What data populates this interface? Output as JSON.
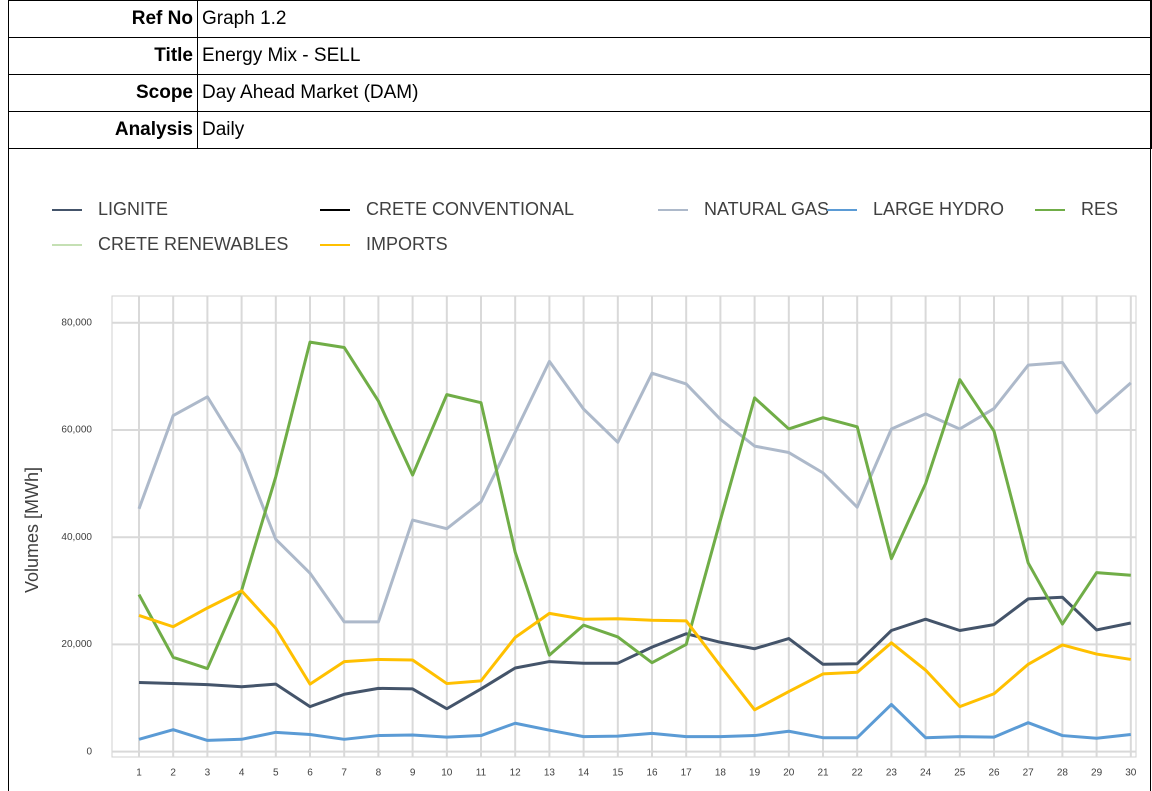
{
  "table": {
    "rows": [
      [
        "Ref No",
        "Graph 1.2"
      ],
      [
        "Title",
        "Energy Mix - SELL"
      ],
      [
        "Scope",
        "Day Ahead Market (DAM)"
      ],
      [
        "Analysis",
        "Daily"
      ]
    ]
  },
  "chart_data": {
    "type": "line",
    "y_label": "Volumes [MWh]",
    "categories": [
      "1",
      "2",
      "3",
      "4",
      "5",
      "6",
      "7",
      "8",
      "9",
      "10",
      "11",
      "12",
      "13",
      "14",
      "15",
      "16",
      "17",
      "18",
      "19",
      "20",
      "21",
      "22",
      "23",
      "24",
      "25",
      "26",
      "27",
      "28",
      "29",
      "30"
    ],
    "ylim": [
      -1000,
      85000
    ],
    "yticks": [
      0,
      {
        "value": 20000,
        "label": "20,000"
      },
      {
        "value": 40000,
        "label": "40,000"
      },
      {
        "value": 60000,
        "label": "60,000"
      },
      {
        "value": 80000,
        "label": "80,000"
      }
    ],
    "grid": true,
    "series": [
      {
        "name": "LIGNITE",
        "color": "#44546a",
        "values": [
          12900,
          12700,
          12500,
          12100,
          12600,
          8400,
          10700,
          11800,
          11700,
          8000,
          11700,
          15600,
          16800,
          16500,
          16500,
          19500,
          22000,
          20400,
          19200,
          21100,
          16300,
          16400,
          22600,
          24700,
          22600,
          23700,
          28500,
          28800,
          22700,
          24000
        ]
      },
      {
        "name": "CRETE CONVENTIONAL",
        "color": "#000000",
        "values": [
          null,
          null,
          null,
          null,
          null,
          null,
          null,
          null,
          null,
          null,
          null,
          null,
          null,
          null,
          null,
          null,
          null,
          null,
          null,
          null,
          null,
          null,
          null,
          null,
          null,
          null,
          null,
          null,
          null,
          null
        ]
      },
      {
        "name": "NATURAL GAS",
        "color": "#adb9ca",
        "values": [
          45300,
          62700,
          66200,
          55800,
          39600,
          33300,
          24200,
          24200,
          43200,
          41600,
          46600,
          59600,
          72800,
          63900,
          57700,
          70600,
          68600,
          62000,
          57000,
          55800,
          52000,
          45600,
          60200,
          63000,
          60200,
          64000,
          72100,
          72600,
          63200,
          68800
        ]
      },
      {
        "name": "LARGE HYDRO",
        "color": "#5b9bd5",
        "values": [
          2300,
          4100,
          2100,
          2300,
          3600,
          3200,
          2300,
          3000,
          3100,
          2700,
          3000,
          5300,
          4000,
          2800,
          2900,
          3400,
          2800,
          2800,
          3000,
          3800,
          2600,
          2600,
          8800,
          2600,
          2800,
          2700,
          5400,
          3000,
          2500,
          3200
        ]
      },
      {
        "name": "RES",
        "color": "#70ad47",
        "values": [
          29300,
          17600,
          15500,
          30100,
          51300,
          76400,
          75400,
          65400,
          51600,
          66600,
          65100,
          37200,
          18000,
          23600,
          21400,
          16600,
          20000,
          43200,
          66000,
          60200,
          62300,
          60600,
          36000,
          50000,
          69400,
          59800,
          35200,
          23800,
          33400,
          32900
        ]
      },
      {
        "name": "CRETE RENEWABLES",
        "color": "#c5e0b4",
        "values": [
          null,
          null,
          null,
          null,
          null,
          null,
          null,
          null,
          null,
          null,
          null,
          null,
          null,
          null,
          null,
          null,
          null,
          null,
          null,
          null,
          null,
          null,
          null,
          null,
          null,
          null,
          null,
          null,
          null,
          null
        ]
      },
      {
        "name": "IMPORTS",
        "color": "#ffc000",
        "values": [
          25400,
          23300,
          26800,
          30000,
          23000,
          12600,
          16800,
          17200,
          17100,
          12700,
          13200,
          21300,
          25800,
          24700,
          24800,
          24500,
          24400,
          16000,
          7800,
          11200,
          14500,
          14800,
          20300,
          15200,
          8400,
          10800,
          16300,
          19900,
          18200,
          17200
        ]
      }
    ]
  }
}
